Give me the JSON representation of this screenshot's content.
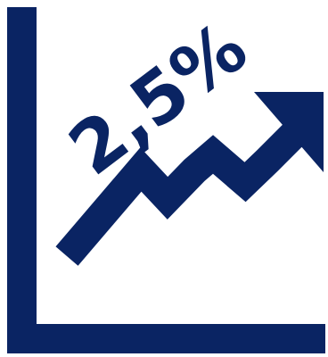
{
  "icon": {
    "name": "growth-chart-icon",
    "color": "#0a2463",
    "background": "#ffffff"
  },
  "label": {
    "text": "2,5%"
  }
}
